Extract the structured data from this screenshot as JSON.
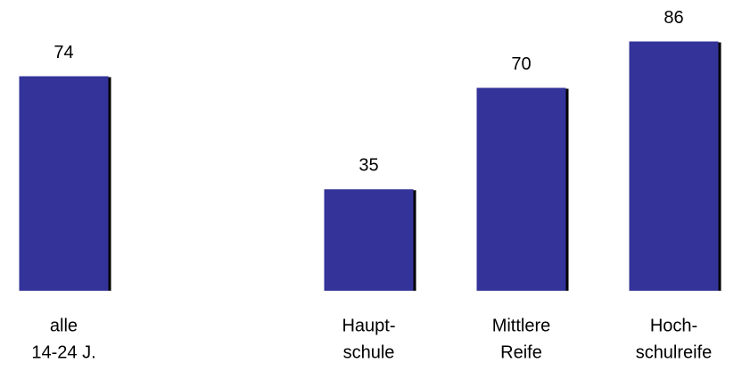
{
  "chart_data": {
    "type": "bar",
    "categories": [
      [
        "alle",
        "14-24 J."
      ],
      null,
      [
        "Haupt-",
        "schule"
      ],
      [
        "Mittlere",
        "Reife"
      ],
      [
        "Hoch-",
        "schulreife"
      ]
    ],
    "values": [
      74,
      null,
      35,
      70,
      86
    ],
    "color": "#333399"
  }
}
